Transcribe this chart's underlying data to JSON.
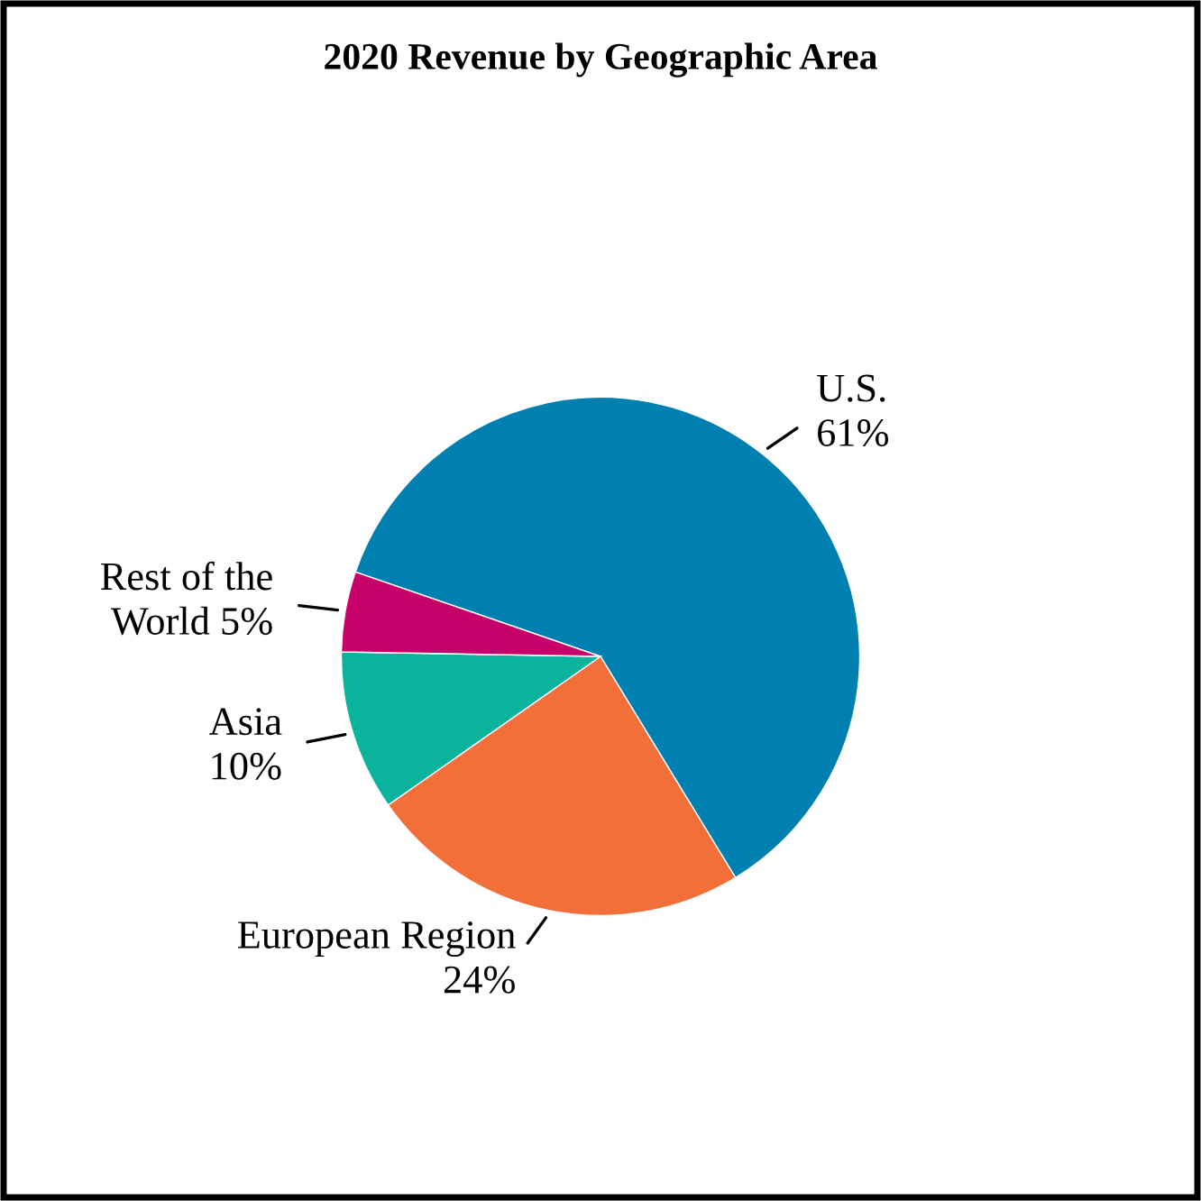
{
  "chart_data": {
    "type": "pie",
    "title": "2020 Revenue by Geographic Area",
    "categories": [
      "U.S.",
      "European Region",
      "Asia",
      "Rest of the\nWorld"
    ],
    "values": [
      61,
      24,
      10,
      5
    ],
    "colors": [
      "#0080b0",
      "#f26f3a",
      "#0ab39b",
      "#c8006a"
    ],
    "value_labels": [
      "61%",
      "24%",
      "10%",
      "5%"
    ],
    "legend": false
  }
}
